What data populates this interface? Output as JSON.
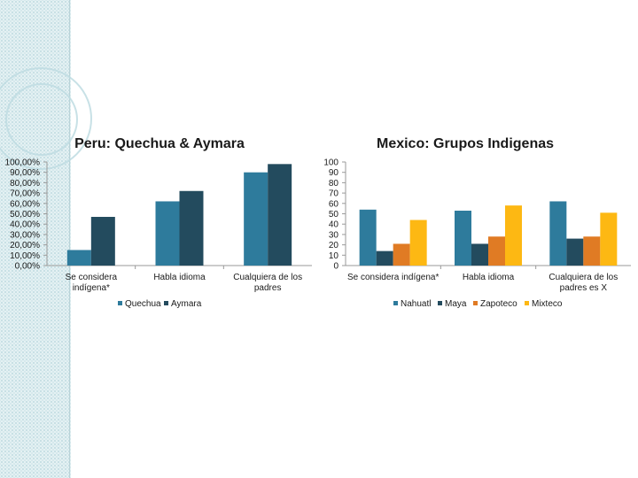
{
  "chart_data": [
    {
      "type": "bar",
      "title": "Peru: Quechua & Aymara",
      "categories": [
        [
          "Se considera",
          "indígena*"
        ],
        [
          "Habla idioma"
        ],
        [
          "Cualquiera de los",
          "padres"
        ]
      ],
      "series": [
        {
          "name": "Quechua",
          "color": "#2e7b9c",
          "values": [
            15,
            62,
            90
          ]
        },
        {
          "name": "Aymara",
          "color": "#234b5e",
          "values": [
            47,
            72,
            98
          ]
        }
      ],
      "ylim": [
        0,
        100
      ],
      "yticks": [
        "0,00%",
        "10,00%",
        "20,00%",
        "30,00%",
        "40,00%",
        "50,00%",
        "60,00%",
        "70,00%",
        "80,00%",
        "90,00%",
        "100,00%"
      ],
      "legend_position": "bottom",
      "grid": false
    },
    {
      "type": "bar",
      "title": "Mexico: Grupos Indigenas",
      "categories": [
        [
          "Se considera indígena*"
        ],
        [
          "Habla idioma"
        ],
        [
          "Cualquiera de los",
          "padres es X"
        ]
      ],
      "series": [
        {
          "name": "Nahuatl",
          "color": "#2e7b9c",
          "values": [
            54,
            53,
            62
          ]
        },
        {
          "name": "Maya",
          "color": "#234b5e",
          "values": [
            14,
            21,
            26
          ]
        },
        {
          "name": "Zapoteco",
          "color": "#e07b24",
          "values": [
            21,
            28,
            28
          ]
        },
        {
          "name": "Mixteco",
          "color": "#fdb813",
          "values": [
            44,
            58,
            51
          ]
        }
      ],
      "ylim": [
        0,
        100
      ],
      "yticks": [
        "0",
        "10",
        "20",
        "30",
        "40",
        "50",
        "60",
        "70",
        "80",
        "90",
        "100"
      ],
      "legend_position": "bottom",
      "grid": false
    }
  ]
}
